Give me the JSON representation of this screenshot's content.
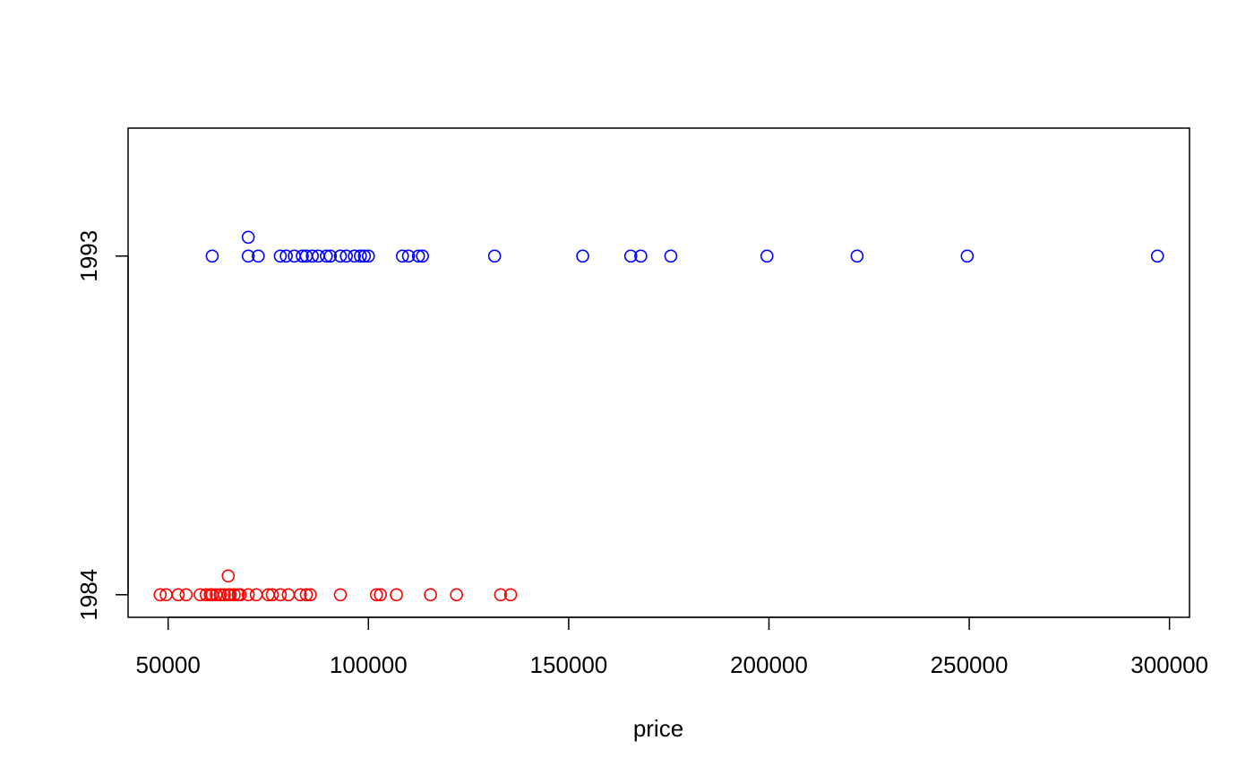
{
  "chart_data": {
    "type": "scatter",
    "title": "",
    "xlabel": "price",
    "ylabel": "",
    "xlim": [
      40000,
      305000
    ],
    "ylim": [
      1983.4,
      1996.4
    ],
    "grid": false,
    "legend": "none",
    "x_ticks": [
      "50000",
      "100000",
      "150000",
      "200000",
      "250000",
      "300000"
    ],
    "y_ticks": [
      "1984",
      "1993"
    ],
    "series": [
      {
        "color": "#ff0000",
        "points": [
          [
            48000,
            1984
          ],
          [
            49500,
            1984
          ],
          [
            52500,
            1984
          ],
          [
            54500,
            1984
          ],
          [
            58000,
            1984
          ],
          [
            59500,
            1984
          ],
          [
            60500,
            1984
          ],
          [
            61000,
            1984
          ],
          [
            62000,
            1984
          ],
          [
            63000,
            1984
          ],
          [
            64000,
            1984
          ],
          [
            65000,
            1984
          ],
          [
            65000,
            1984.5
          ],
          [
            65500,
            1984
          ],
          [
            66500,
            1984
          ],
          [
            67500,
            1984
          ],
          [
            68000,
            1984
          ],
          [
            70000,
            1984
          ],
          [
            72000,
            1984
          ],
          [
            75000,
            1984
          ],
          [
            76000,
            1984
          ],
          [
            78000,
            1984
          ],
          [
            80000,
            1984
          ],
          [
            83000,
            1984
          ],
          [
            84500,
            1984
          ],
          [
            85500,
            1984
          ],
          [
            93000,
            1984
          ],
          [
            102000,
            1984
          ],
          [
            103000,
            1984
          ],
          [
            107000,
            1984
          ],
          [
            115500,
            1984
          ],
          [
            122000,
            1984
          ],
          [
            133000,
            1984
          ],
          [
            135500,
            1984
          ]
        ]
      },
      {
        "color": "#0000ff",
        "points": [
          [
            61000,
            1993
          ],
          [
            70000,
            1993
          ],
          [
            70000,
            1993.5
          ],
          [
            72500,
            1993
          ],
          [
            78000,
            1993
          ],
          [
            79500,
            1993
          ],
          [
            81500,
            1993
          ],
          [
            83500,
            1993
          ],
          [
            84500,
            1993
          ],
          [
            86000,
            1993
          ],
          [
            87500,
            1993
          ],
          [
            89500,
            1993
          ],
          [
            90500,
            1993
          ],
          [
            93000,
            1993
          ],
          [
            94500,
            1993
          ],
          [
            96500,
            1993
          ],
          [
            98000,
            1993
          ],
          [
            99000,
            1993
          ],
          [
            100000,
            1993
          ],
          [
            108500,
            1993
          ],
          [
            110000,
            1993
          ],
          [
            112500,
            1993
          ],
          [
            113500,
            1993
          ],
          [
            131500,
            1993
          ],
          [
            153500,
            1993
          ],
          [
            165500,
            1993
          ],
          [
            168000,
            1993
          ],
          [
            175500,
            1993
          ],
          [
            199500,
            1993
          ],
          [
            222000,
            1993
          ],
          [
            249500,
            1993
          ],
          [
            297000,
            1993
          ]
        ]
      }
    ]
  }
}
